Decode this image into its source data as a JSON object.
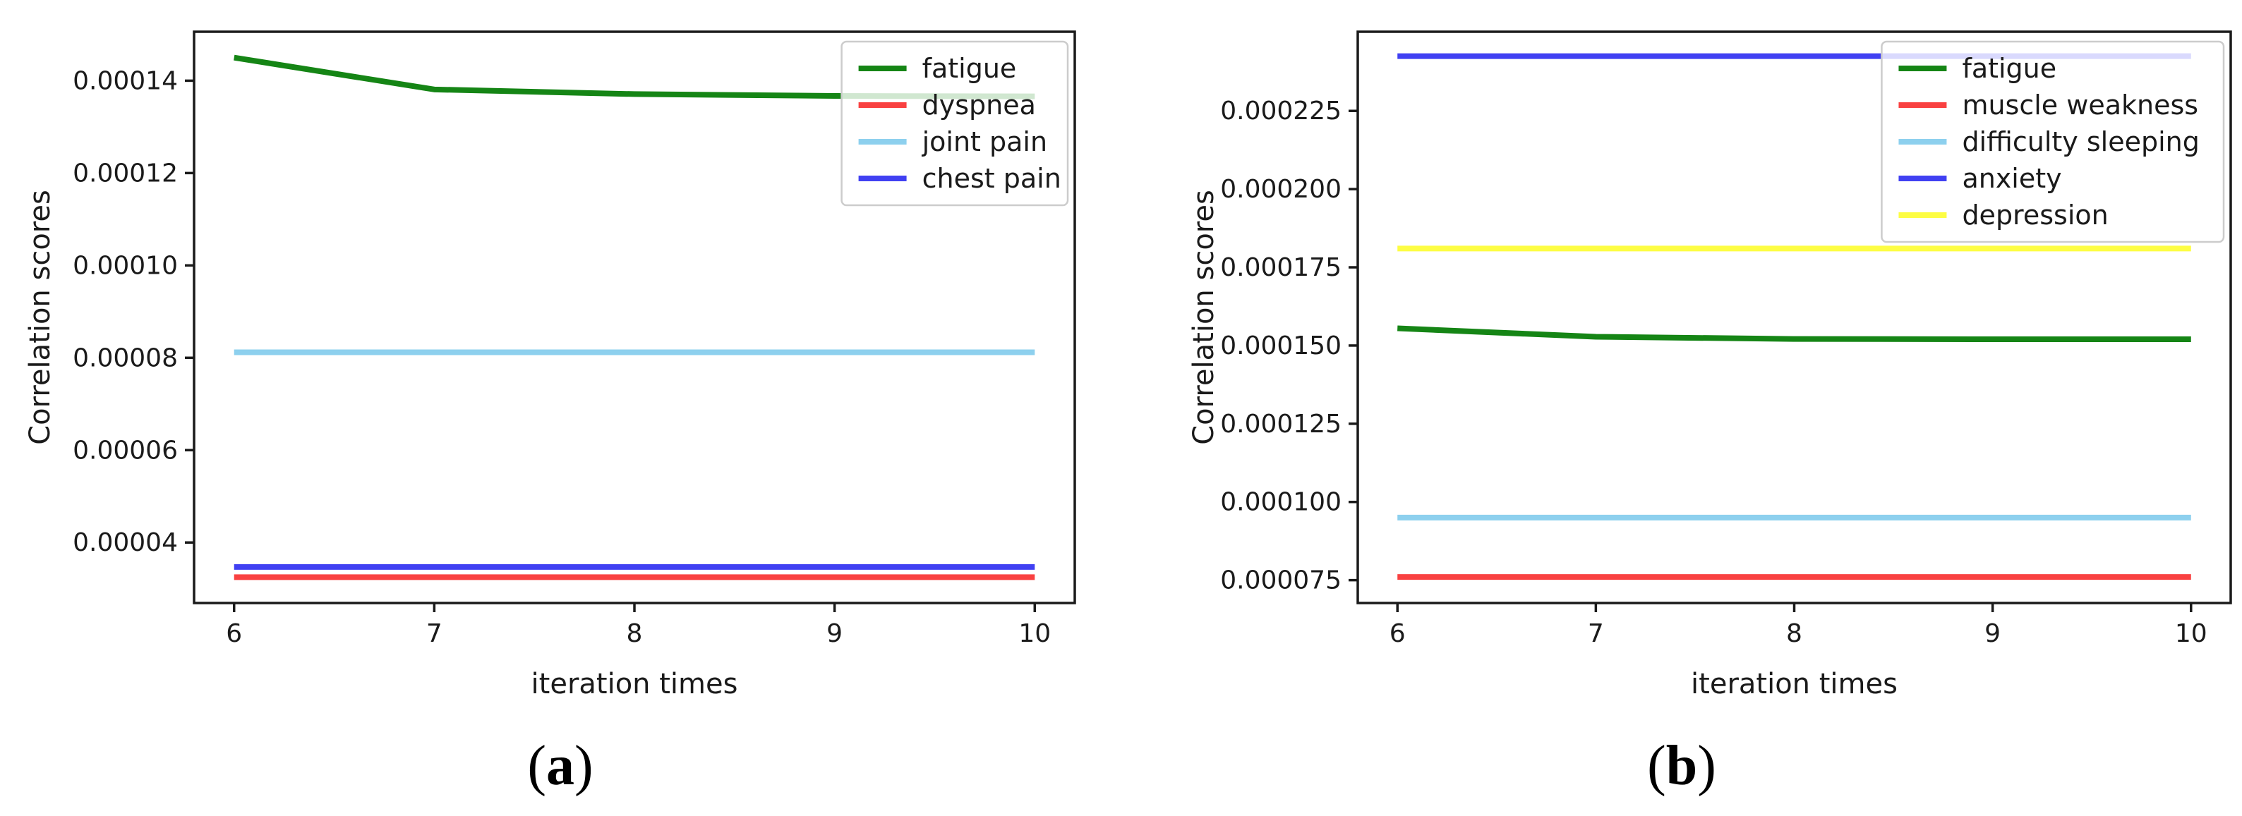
{
  "figure": {
    "background": "#ffffff",
    "spine_color": "#1a1a1a",
    "text_color": "#1a1a1a",
    "legend_border_color": "#cccccc",
    "legend_background": "rgba(255,255,255,0.8)"
  },
  "chart_data": [
    {
      "type": "line",
      "title": "",
      "xlabel": "iteration times",
      "ylabel": "Correlation scores",
      "caption": "(a)",
      "caption_parts": {
        "open": "(",
        "letter": "a",
        "close": ")"
      },
      "x": [
        6,
        7,
        8,
        9,
        10
      ],
      "xlim": [
        5.8,
        10.2
      ],
      "ylim": [
        2.69e-05,
        0.0001506
      ],
      "grid": false,
      "legend_position": "upper right",
      "x_ticks": {
        "values": [
          6,
          7,
          8,
          9,
          10
        ],
        "labels": [
          "6",
          "7",
          "8",
          "9",
          "10"
        ]
      },
      "y_ticks": {
        "values": [
          4e-05,
          6e-05,
          8e-05,
          0.0001,
          0.00012,
          0.00014
        ],
        "labels": [
          "0.00004",
          "0.00006",
          "0.00008",
          "0.00010",
          "0.00012",
          "0.00014"
        ]
      },
      "series": [
        {
          "name": "fatigue",
          "color": "#158515",
          "values": [
            0.000145,
            0.0001381,
            0.0001371,
            0.0001367,
            0.0001366
          ]
        },
        {
          "name": "dyspnea",
          "color": "#f94141",
          "values": [
            3.25e-05,
            3.25e-05,
            3.25e-05,
            3.25e-05,
            3.25e-05
          ]
        },
        {
          "name": "joint pain",
          "color": "#8dd0ee",
          "values": [
            8.12e-05,
            8.12e-05,
            8.12e-05,
            8.12e-05,
            8.12e-05
          ]
        },
        {
          "name": "chest pain",
          "color": "#4040f2",
          "values": [
            3.47e-05,
            3.47e-05,
            3.47e-05,
            3.47e-05,
            3.47e-05
          ]
        }
      ]
    },
    {
      "type": "line",
      "title": "",
      "xlabel": "iteration times",
      "ylabel": "Correlation scores",
      "caption": "(b)",
      "caption_parts": {
        "open": "(",
        "letter": "b",
        "close": ")"
      },
      "x": [
        6,
        7,
        8,
        9,
        10
      ],
      "xlim": [
        5.8,
        10.2
      ],
      "ylim": [
        6.77e-05,
        0.0002503
      ],
      "grid": false,
      "legend_position": "upper right",
      "x_ticks": {
        "values": [
          6,
          7,
          8,
          9,
          10
        ],
        "labels": [
          "6",
          "7",
          "8",
          "9",
          "10"
        ]
      },
      "y_ticks": {
        "values": [
          7.5e-05,
          0.0001,
          0.000125,
          0.00015,
          0.000175,
          0.0002,
          0.000225
        ],
        "labels": [
          "0.000075",
          "0.000100",
          "0.000125",
          "0.000150",
          "0.000175",
          "0.000200",
          "0.000225"
        ]
      },
      "series": [
        {
          "name": "fatigue",
          "color": "#158515",
          "values": [
            0.0001555,
            0.0001528,
            0.0001521,
            0.000152,
            0.000152
          ]
        },
        {
          "name": "muscle weakness",
          "color": "#f94141",
          "values": [
            7.6e-05,
            7.6e-05,
            7.6e-05,
            7.6e-05,
            7.6e-05
          ]
        },
        {
          "name": "difficulty sleeping",
          "color": "#8dd0ee",
          "values": [
            9.5e-05,
            9.5e-05,
            9.5e-05,
            9.5e-05,
            9.5e-05
          ]
        },
        {
          "name": "anxiety",
          "color": "#4040f2",
          "values": [
            0.0002425,
            0.0002425,
            0.0002425,
            0.0002425,
            0.0002425
          ]
        },
        {
          "name": "depression",
          "color": "#fdfd43",
          "values": [
            0.000181,
            0.000181,
            0.000181,
            0.000181,
            0.000181
          ]
        }
      ]
    }
  ]
}
